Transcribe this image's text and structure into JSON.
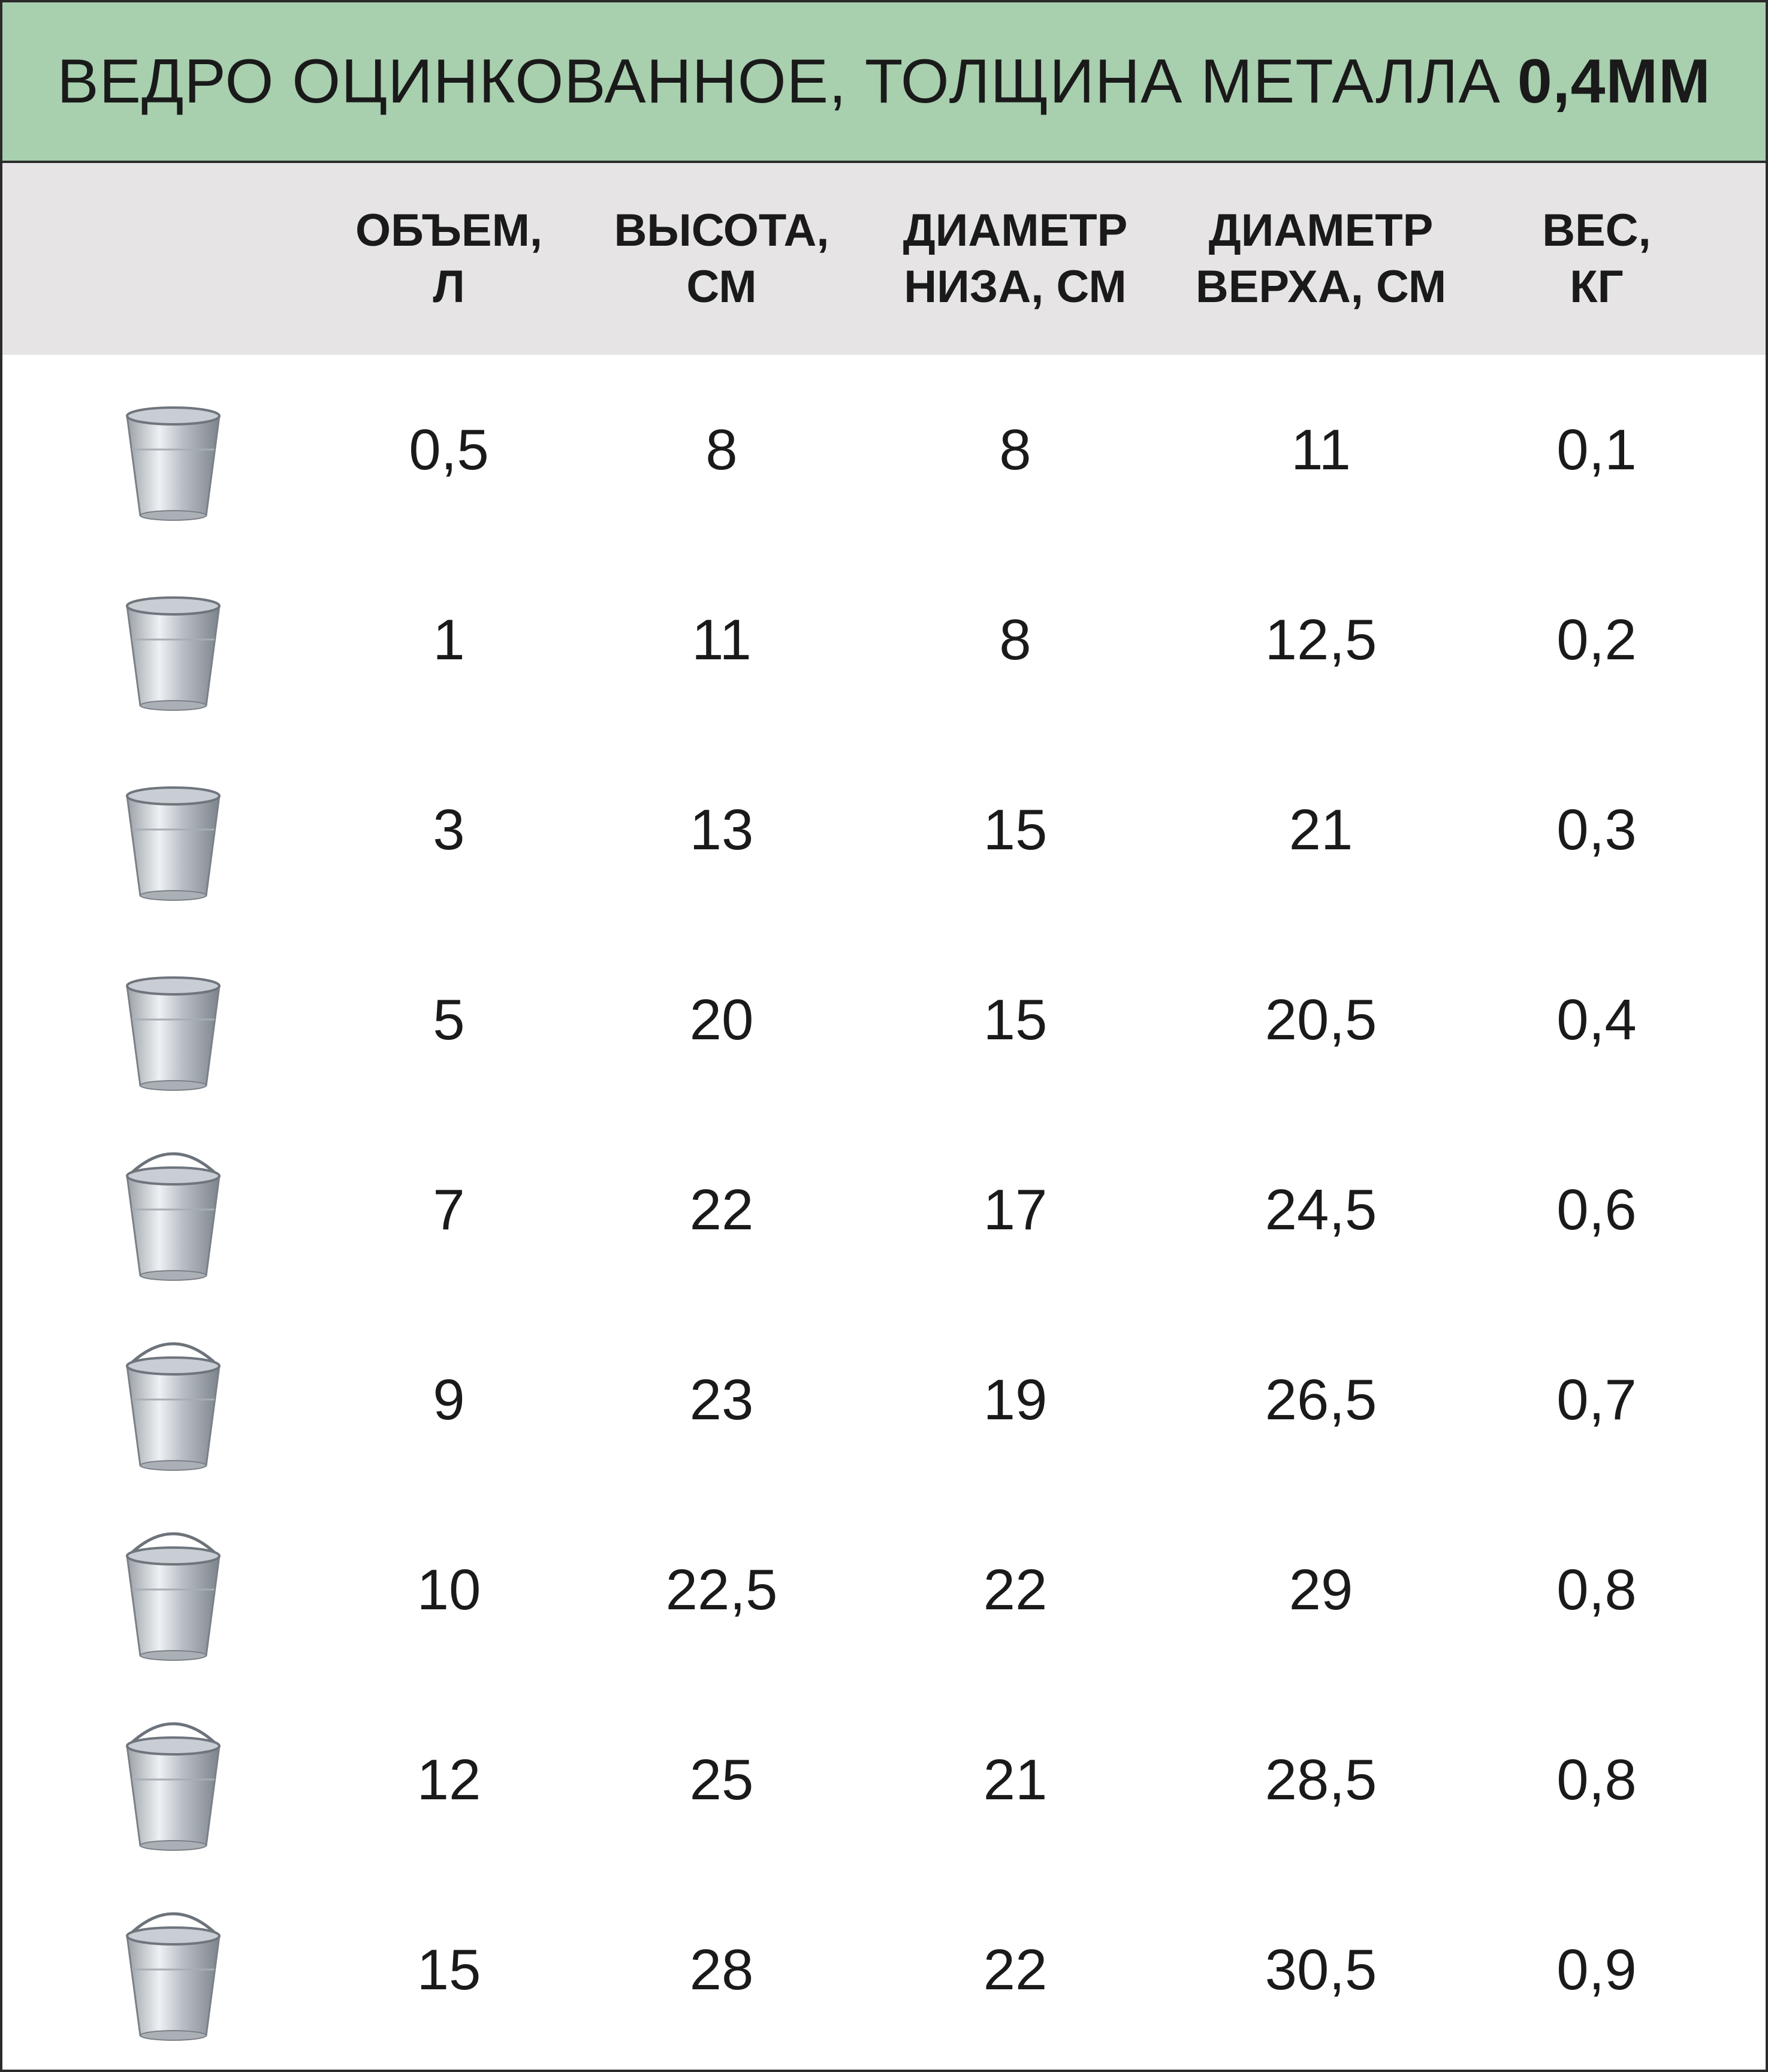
{
  "title": {
    "main": "ВЕДРО ОЦИНКОВАННОЕ, ТОЛЩИНА МЕТАЛЛА",
    "thickness": "0,4ММ"
  },
  "columns": [
    {
      "line1": "ОБЪЕМ,",
      "line2": "Л"
    },
    {
      "line1": "ВЫСОТА,",
      "line2": "СМ"
    },
    {
      "line1": "ДИАМЕТР",
      "line2": "НИЗА, СМ"
    },
    {
      "line1": "ДИАМЕТР",
      "line2": "ВЕРХА, СМ"
    },
    {
      "line1": "ВЕС,",
      "line2": "КГ"
    }
  ],
  "rows": [
    {
      "volume": "0,5",
      "height": "8",
      "bottom": "8",
      "top": "11",
      "weight": "0,1"
    },
    {
      "volume": "1",
      "height": "11",
      "bottom": "8",
      "top": "12,5",
      "weight": "0,2"
    },
    {
      "volume": "3",
      "height": "13",
      "bottom": "15",
      "top": "21",
      "weight": "0,3"
    },
    {
      "volume": "5",
      "height": "20",
      "bottom": "15",
      "top": "20,5",
      "weight": "0,4"
    },
    {
      "volume": "7",
      "height": "22",
      "bottom": "17",
      "top": "24,5",
      "weight": "0,6"
    },
    {
      "volume": "9",
      "height": "23",
      "bottom": "19",
      "top": "26,5",
      "weight": "0,7"
    },
    {
      "volume": "10",
      "height": "22,5",
      "bottom": "22",
      "top": "29",
      "weight": "0,8"
    },
    {
      "volume": "12",
      "height": "25",
      "bottom": "21",
      "top": "28,5",
      "weight": "0,8"
    },
    {
      "volume": "15",
      "height": "28",
      "bottom": "22",
      "top": "30,5",
      "weight": "0,9"
    }
  ],
  "colors": {
    "title_bg": "#a8cfae",
    "header_bg": "#e6e4e4",
    "border": "#2b2b2b"
  },
  "icons": {
    "row_icon": "galvanized-bucket-icon"
  }
}
